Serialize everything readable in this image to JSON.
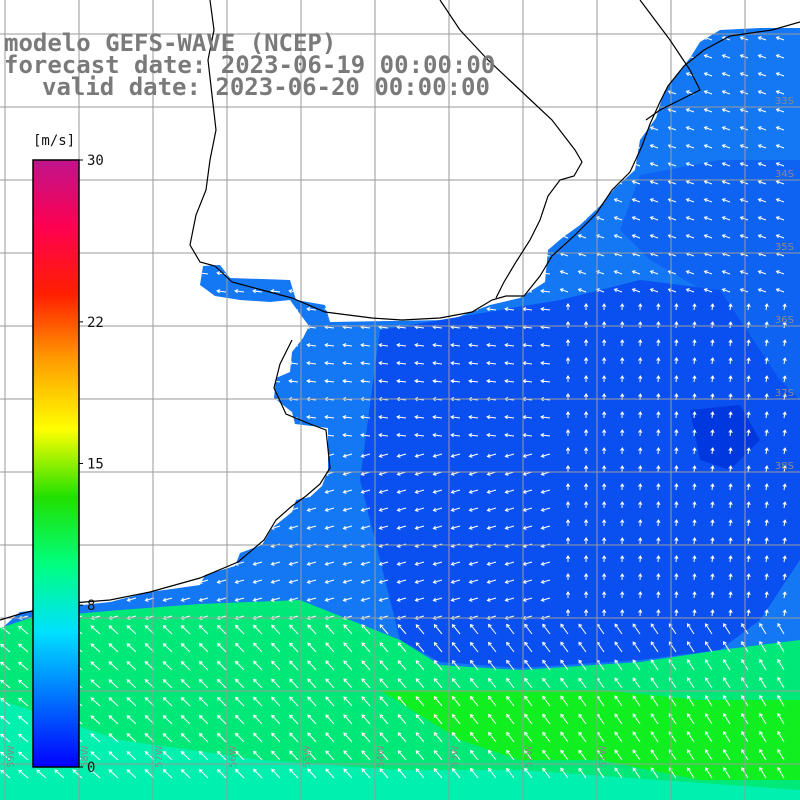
{
  "title": {
    "line1": "modelo GEFS-WAVE (NCEP)",
    "line2": "forecast date: 2023-06-19 00:00:00",
    "line3": "valid date: 2023-06-20 00:00:00"
  },
  "colorbar": {
    "unit": "[m/s]",
    "ticks": [
      "30",
      "22",
      "15",
      "8",
      "0"
    ],
    "tick_values": [
      30,
      22,
      15,
      8,
      0
    ],
    "range": [
      0,
      30
    ],
    "colors": [
      "#0000ff",
      "#0070ff",
      "#00e0ff",
      "#00ff80",
      "#20e000",
      "#ffff00",
      "#ffa000",
      "#ff2000",
      "#ff0050",
      "#c0148c"
    ]
  },
  "map": {
    "lat_labels": [
      "33S",
      "34S",
      "35S",
      "36S",
      "37S",
      "38S"
    ],
    "lon_labels": [
      "59W",
      "58W",
      "57W",
      "56W",
      "55W",
      "54W",
      "53W",
      "52W",
      "51W"
    ],
    "ocean_colors": {
      "calm": "#0a50f0",
      "moderate": "#1478f5",
      "strong": "#00e878",
      "brightest": "#10f020"
    },
    "land_color": "#ffffff",
    "grid_color": "#9a9a9a",
    "coast_color": "#000000"
  }
}
